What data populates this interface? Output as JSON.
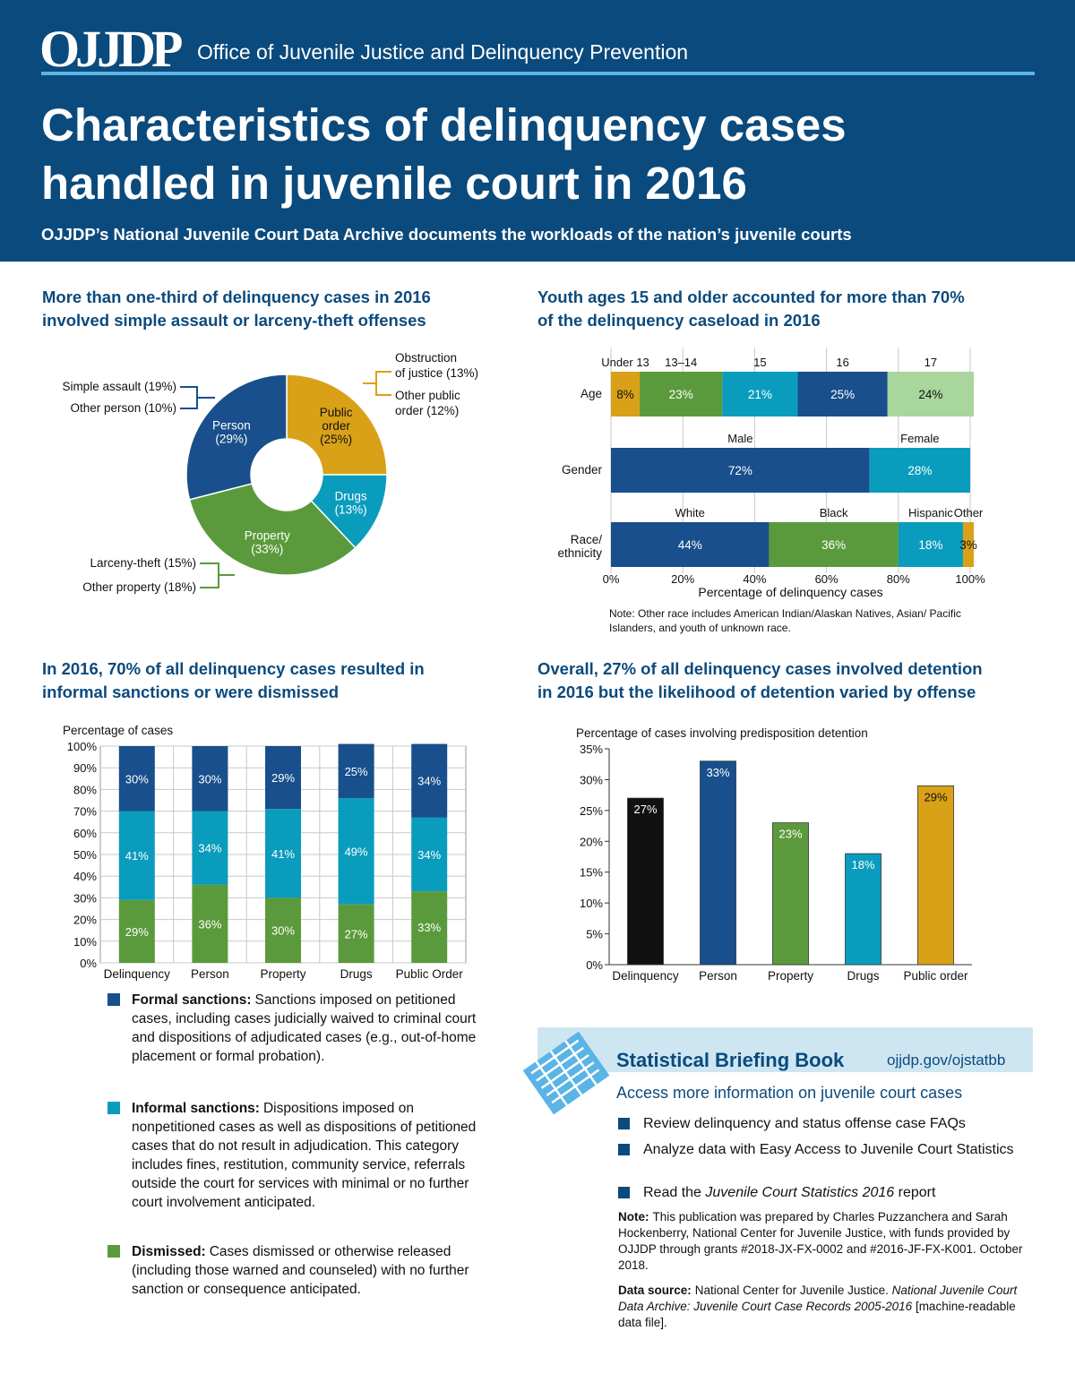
{
  "header": {
    "logo": "OJJDP",
    "org": "Office of Juvenile Justice and Delinquency Prevention",
    "title": [
      "Characteristics of delinquency cases",
      "handled in juvenile court in 2016"
    ],
    "subtitle": "OJJDP’s National Juvenile Court Data Archive documents the workloads of the nation’s juvenile courts"
  },
  "chart_data": [
    {
      "type": "donut",
      "title": [
        "More than one-third of delinquency cases in 2016",
        "involved simple assault or larceny-theft offenses"
      ],
      "slices": [
        {
          "name": [
            "Public",
            "order"
          ],
          "value": 25,
          "value_label": "(25%)",
          "color": "#d9a117",
          "text_color": "#111111"
        },
        {
          "name": [
            "Drugs"
          ],
          "value": 13,
          "value_label": "(13%)",
          "color": "#0a9cbd",
          "text_color": "#ffffff"
        },
        {
          "name": [
            "Property"
          ],
          "value": 33,
          "value_label": "(33%)",
          "color": "#5b9a3c",
          "text_color": "#ffffff"
        },
        {
          "name": [
            "Person"
          ],
          "value": 29,
          "value_label": "(29%)",
          "color": "#184f8c",
          "text_color": "#ffffff"
        }
      ],
      "annotations": [
        [
          "Obstruction",
          "of justice (13%)"
        ],
        [
          "Other public",
          "order (12%)"
        ],
        [
          "Simple assault (19%)"
        ],
        [
          "Other person (10%)"
        ],
        [
          "Larceny-theft (15%)"
        ],
        [
          "Other property (18%)"
        ]
      ]
    },
    {
      "type": "stacked-hbar",
      "title": [
        "Youth ages 15 and older accounted for more than 70%",
        "of the delinquency caseload in 2016"
      ],
      "groups": [
        {
          "name": "Age",
          "segments": [
            {
              "name": "Under 13",
              "value": 8,
              "value_label": "8%",
              "color": "#d9a117",
              "text_color": "#111111"
            },
            {
              "name": "13–14",
              "value": 23,
              "value_label": "23%",
              "color": "#5b9a3c",
              "text_color": "#ffffff"
            },
            {
              "name": "15",
              "value": 21,
              "value_label": "21%",
              "color": "#0a9cbd",
              "text_color": "#ffffff"
            },
            {
              "name": "16",
              "value": 25,
              "value_label": "25%",
              "color": "#184f8c",
              "text_color": "#ffffff"
            },
            {
              "name": "17",
              "value": 24,
              "value_label": "24%",
              "color": "#a8d69c",
              "text_color": "#111111"
            }
          ]
        },
        {
          "name": "Gender",
          "segments": [
            {
              "name": "Male",
              "value": 72,
              "value_label": "72%",
              "color": "#184f8c",
              "text_color": "#ffffff"
            },
            {
              "name": "Female",
              "value": 28,
              "value_label": "28%",
              "color": "#0a9cbd",
              "text_color": "#ffffff"
            }
          ]
        },
        {
          "name": "Race/ ethnicity",
          "segments": [
            {
              "name": "White",
              "value": 44,
              "value_label": "44%",
              "color": "#184f8c",
              "text_color": "#ffffff"
            },
            {
              "name": "Black",
              "value": 36,
              "value_label": "36%",
              "color": "#5b9a3c",
              "text_color": "#ffffff"
            },
            {
              "name": "Hispanic",
              "value": 18,
              "value_label": "18%",
              "color": "#0a9cbd",
              "text_color": "#ffffff"
            },
            {
              "name": "Other",
              "value": 3,
              "value_label": "3%",
              "color": "#d9a117",
              "text_color": "#111111"
            }
          ]
        }
      ],
      "xlim": [
        0,
        100
      ],
      "xticks": [
        {
          "value": 0,
          "label": "0%"
        },
        {
          "value": 20,
          "label": "20%"
        },
        {
          "value": 40,
          "label": "40%"
        },
        {
          "value": 60,
          "label": "60%"
        },
        {
          "value": 80,
          "label": "80%"
        },
        {
          "value": 100,
          "label": "100%"
        }
      ],
      "xlabel": "Percentage of delinquency cases",
      "grid": true,
      "note": "Note: Other race includes American Indian/Alaskan Natives, Asian/ Pacific Islanders, and youth of unknown race."
    },
    {
      "type": "stacked-bar",
      "title": [
        "In 2016, 70% of all delinquency cases resulted in",
        "informal sanctions or were dismissed"
      ],
      "ylabel": "Percentage of cases",
      "categories": [
        "Delinquency",
        "Person",
        "Property",
        "Drugs",
        "Public Order"
      ],
      "series": [
        {
          "name": "Formal sanctions:",
          "color": "#184f8c",
          "values": [
            30,
            30,
            29,
            25,
            34
          ],
          "value_labels": [
            "30%",
            "30%",
            "29%",
            "25%",
            "34%"
          ],
          "description": "Sanctions imposed on petitioned cases, including cases judicially waived to criminal court and dispositions of adjudicated cases (e.g., out-of-home placement or formal probation)."
        },
        {
          "name": "Informal sanctions:",
          "color": "#0a9cbd",
          "values": [
            41,
            34,
            41,
            49,
            34
          ],
          "value_labels": [
            "41%",
            "34%",
            "41%",
            "49%",
            "34%"
          ],
          "description": "Dispositions imposed on nonpetitioned cases as well as dispositions of petitioned cases that do not result in adjudication. This category includes fines, restitution, community service, referrals outside the court for services with minimal or no further court involvement anticipated."
        },
        {
          "name": "Dismissed:",
          "color": "#5b9a3c",
          "values": [
            29,
            36,
            30,
            27,
            33
          ],
          "value_labels": [
            "29%",
            "36%",
            "30%",
            "27%",
            "33%"
          ],
          "description": "Cases dismissed or otherwise released (including those warned and counseled) with no further sanction or consequence anticipated."
        }
      ],
      "ylim": [
        0,
        100
      ],
      "yticks": [
        {
          "value": 0,
          "label": "0%"
        },
        {
          "value": 10,
          "label": "10%"
        },
        {
          "value": 20,
          "label": "20%"
        },
        {
          "value": 30,
          "label": "30%"
        },
        {
          "value": 40,
          "label": "40%"
        },
        {
          "value": 50,
          "label": "50%"
        },
        {
          "value": 60,
          "label": "60%"
        },
        {
          "value": 70,
          "label": "70%"
        },
        {
          "value": 80,
          "label": "80%"
        },
        {
          "value": 90,
          "label": "90%"
        },
        {
          "value": 100,
          "label": "100%"
        }
      ],
      "grid": true
    },
    {
      "type": "bar",
      "title": [
        "Overall, 27% of all delinquency cases involved detention",
        "in 2016 but the likelihood of detention varied by offense"
      ],
      "ylabel": "Percentage of cases involving predisposition detention",
      "categories": [
        "Delinquency",
        "Person",
        "Property",
        "Drugs",
        "Public order"
      ],
      "values": [
        27,
        33,
        23,
        18,
        29
      ],
      "value_labels": [
        "27%",
        "33%",
        "23%",
        "18%",
        "29%"
      ],
      "colors": [
        "#111111",
        "#184f8c",
        "#5b9a3c",
        "#0a9cbd",
        "#d9a117"
      ],
      "label_colors": [
        "#ffffff",
        "#ffffff",
        "#ffffff",
        "#ffffff",
        "#111111"
      ],
      "ylim": [
        0,
        35
      ],
      "yticks": [
        {
          "value": 0,
          "label": "0%"
        },
        {
          "value": 5,
          "label": "5%"
        },
        {
          "value": 10,
          "label": "10%"
        },
        {
          "value": 15,
          "label": "15%"
        },
        {
          "value": 20,
          "label": "20%"
        },
        {
          "value": 25,
          "label": "25%"
        },
        {
          "value": 30,
          "label": "30%"
        },
        {
          "value": 35,
          "label": "35%"
        }
      ]
    }
  ],
  "briefing": {
    "title": "Statistical Briefing Book",
    "url": "ojjdp.gov/ojstatbb",
    "heading": "Access more information on juvenile court cases",
    "items": [
      [
        {
          "text": "Review delinquency and status offense case FAQs"
        }
      ],
      [
        {
          "text": "Analyze data with Easy Access to Juvenile Court Statistics"
        }
      ],
      [
        {
          "text": "Read the "
        },
        {
          "text": "Juvenile Court Statistics 2016",
          "italic": true
        },
        {
          "text": " report"
        }
      ]
    ]
  },
  "notes": [
    {
      "label": "Note:",
      "parts": [
        {
          "text": "This publication was prepared by Charles Puzzanchera and Sarah Hockenberry, National Center for Juvenile Justice, with funds provided by OJJDP through grants #2018-JX-FX-0002 and #2016-JF-FX-K001. October 2018."
        }
      ]
    },
    {
      "label": "Data source:",
      "parts": [
        {
          "text": "National Center for Juvenile Justice. "
        },
        {
          "text": "National Juvenile Court Data Archive: Juvenile Court Case Records 2005-2016",
          "italic": true
        },
        {
          "text": " [machine-readable data file]."
        }
      ]
    }
  ]
}
